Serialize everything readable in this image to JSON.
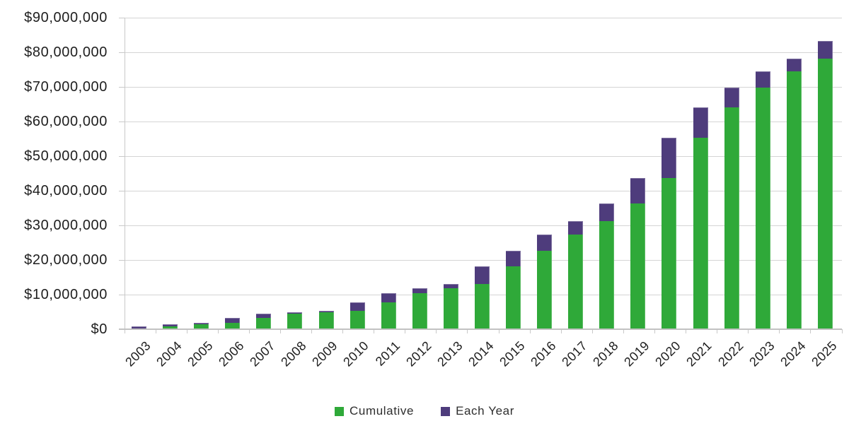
{
  "chart_data": {
    "type": "bar",
    "stacked": true,
    "title": "",
    "xlabel": "",
    "ylabel": "",
    "categories": [
      "2003",
      "2004",
      "2005",
      "2006",
      "2007",
      "2008",
      "2009",
      "2010",
      "2011",
      "2012",
      "2013",
      "2014",
      "2015",
      "2016",
      "2017",
      "2018",
      "2019",
      "2020",
      "2021",
      "2022",
      "2023",
      "2024",
      "2025"
    ],
    "series": [
      {
        "name": "Cumulative",
        "color": "#2fa939",
        "values": [
          300000,
          750000,
          1350000,
          1850000,
          3300000,
          4500000,
          4800000,
          5400000,
          7800000,
          10500000,
          11900000,
          13000000,
          18200000,
          22700000,
          27300000,
          31300000,
          36400000,
          43700000,
          55300000,
          64000000,
          69800000,
          74400000,
          78100000
        ]
      },
      {
        "name": "Each Year",
        "color": "#4e3c7c",
        "values": [
          450000,
          600000,
          500000,
          1450000,
          1200000,
          300000,
          600000,
          2400000,
          2700000,
          1400000,
          1100000,
          5200000,
          4500000,
          4600000,
          4000000,
          5100000,
          7300000,
          11600000,
          8700000,
          5800000,
          4600000,
          3700000,
          5200000
        ]
      }
    ],
    "stack_totals": [
      750000,
      1350000,
      1850000,
      3300000,
      4500000,
      4800000,
      5400000,
      7800000,
      10500000,
      11900000,
      13000000,
      18200000,
      22700000,
      27300000,
      31300000,
      36400000,
      43700000,
      55300000,
      64000000,
      69800000,
      74400000,
      78100000,
      83300000
    ],
    "y_ticks": [
      "$0",
      "$10,000,000",
      "$20,000,000",
      "$30,000,000",
      "$40,000,000",
      "$50,000,000",
      "$60,000,000",
      "$70,000,000",
      "$80,000,000",
      "$90,000,000"
    ],
    "ylim": [
      0,
      90000000
    ],
    "grid": "horizontal",
    "legend_position": "bottom",
    "colors": {
      "gridline": "#d4d4d4",
      "axis": "#c9c9c9",
      "label_text": "#1e1e1e",
      "legend_text": "#2e2e2e"
    }
  }
}
